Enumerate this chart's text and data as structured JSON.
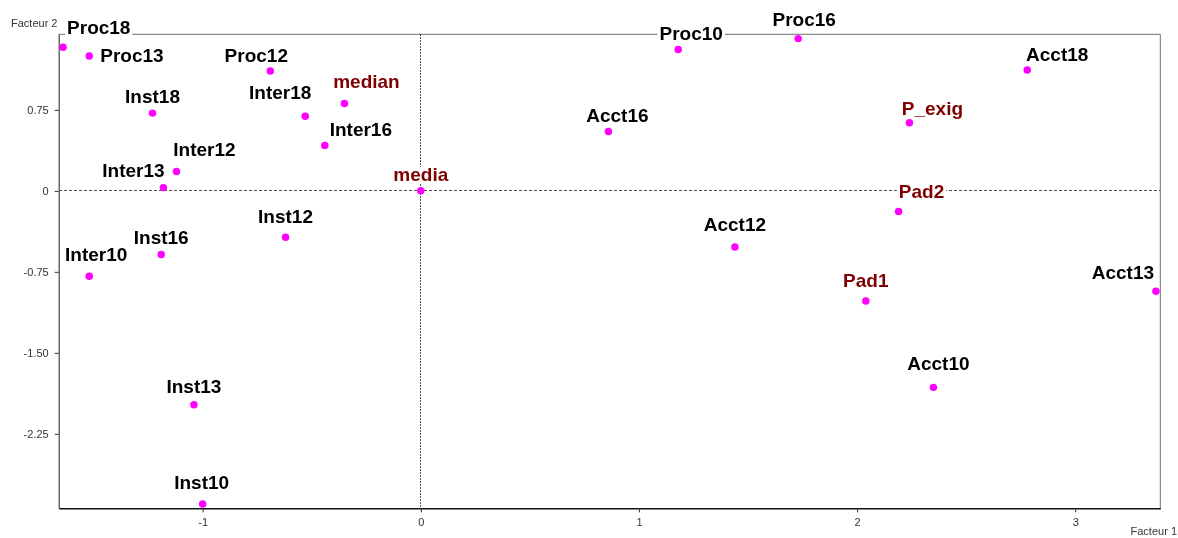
{
  "chart_data": {
    "type": "scatter",
    "xlabel": "Facteur 1",
    "ylabel": "Facteur 2",
    "xlim": [
      -1.66,
      3.39
    ],
    "ylim": [
      -2.94,
      1.45
    ],
    "xticks": [
      -1,
      0,
      1,
      2,
      3
    ],
    "yticks": [
      {
        "value": -2.25,
        "label": "-2.25"
      },
      {
        "value": -1.5,
        "label": "-1.50"
      },
      {
        "value": -0.75,
        "label": "-0.75"
      },
      0,
      0.75
    ],
    "marker": "circle",
    "ref_lines": [
      {
        "axis": "x",
        "value": 0,
        "color": "#505050",
        "line_style": "dotted"
      },
      {
        "axis": "y",
        "value": 0,
        "color": "#505050",
        "line_style": "dashed"
      }
    ],
    "series": [
      {
        "color": "#ff00ff",
        "x": [
          -1.64,
          -1.52,
          -0.69,
          -1.23,
          -0.53,
          -0.44,
          -1.12,
          -1.18,
          -0.62,
          -1.19,
          -1.52,
          -1.04,
          -1.0,
          1.18,
          1.73,
          0.86,
          1.44,
          2.78,
          3.37,
          2.35
        ],
        "values": [
          1.33,
          1.25,
          1.11,
          0.72,
          0.69,
          0.42,
          0.18,
          0.03,
          -0.43,
          -0.59,
          -0.79,
          -1.98,
          -2.9,
          1.31,
          1.41,
          0.55,
          -0.52,
          1.12,
          -0.93,
          -1.82
        ]
      },
      {
        "color": "#ff00ff",
        "x": [
          -0.35,
          0,
          2.24,
          2.19,
          2.04
        ],
        "values": [
          0.81,
          0,
          0.63,
          -0.19,
          -1.02
        ]
      }
    ],
    "annotations": [
      {
        "text": "Proc18",
        "x": -1.64,
        "y": 1.33
      },
      {
        "text": "Proc13",
        "x": -1.52,
        "y": 1.25
      },
      {
        "text": "Proc12",
        "x": -0.69,
        "y": 1.11
      },
      {
        "text": "Inst18",
        "x": -1.23,
        "y": 0.72
      },
      {
        "text": "Inter18",
        "x": -0.53,
        "y": 0.69
      },
      {
        "text": "Inter16",
        "x": -0.44,
        "y": 0.42
      },
      {
        "text": "Inter12",
        "x": -1.12,
        "y": 0.18
      },
      {
        "text": "Inter13",
        "x": -1.18,
        "y": 0.03
      },
      {
        "text": "Inst12",
        "x": -0.62,
        "y": -0.43
      },
      {
        "text": "Inst16",
        "x": -1.19,
        "y": -0.59
      },
      {
        "text": "Inter10",
        "x": -1.52,
        "y": -0.79
      },
      {
        "text": "Inst13",
        "x": -1.04,
        "y": -1.98
      },
      {
        "text": "Inst10",
        "x": -1.0,
        "y": -2.9
      },
      {
        "text": "Proc10",
        "x": 1.18,
        "y": 1.31
      },
      {
        "text": "Proc16",
        "x": 1.73,
        "y": 1.41
      },
      {
        "text": "Acct16",
        "x": 0.86,
        "y": 0.55
      },
      {
        "text": "Acct12",
        "x": 1.44,
        "y": -0.52
      },
      {
        "text": "Acct18",
        "x": 2.78,
        "y": 1.12
      },
      {
        "text": "Acct13",
        "x": 3.37,
        "y": -0.93
      },
      {
        "text": "Acct10",
        "x": 2.35,
        "y": -1.82
      },
      {
        "text": "median",
        "x": -0.35,
        "y": 0.81
      },
      {
        "text": "media",
        "x": 0,
        "y": 0
      },
      {
        "text": "P_exig",
        "x": 2.24,
        "y": 0.63
      },
      {
        "text": "Pad2",
        "x": 2.19,
        "y": -0.19
      },
      {
        "text": "Pad1",
        "x": 2.04,
        "y": -1.02
      }
    ]
  }
}
